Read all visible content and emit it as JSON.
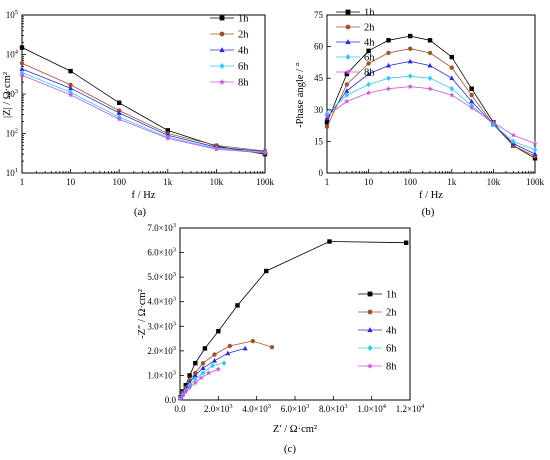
{
  "chart_data": [
    {
      "type": "scatter",
      "panel_label": "(a)",
      "xlabel": "f / Hz",
      "ylabel": "|Z| / Ω·cm²",
      "xscale": "log",
      "yscale": "log",
      "xlim": [
        1,
        100000
      ],
      "ylim": [
        10,
        100000
      ],
      "xticks": [
        "1",
        "10",
        "100",
        "1k",
        "10k",
        "100k"
      ],
      "yticks": [
        {
          "base": "10",
          "exp": "1"
        },
        {
          "base": "10",
          "exp": "2"
        },
        {
          "base": "10",
          "exp": "3"
        },
        {
          "base": "10",
          "exp": "4"
        },
        {
          "base": "10",
          "exp": "5"
        }
      ],
      "legend_position": "top-right",
      "series": [
        {
          "name": "1h",
          "color": "#000000",
          "marker": "square",
          "x": [
            1,
            10,
            100,
            1000,
            10000,
            100000
          ],
          "y": [
            15000,
            3800,
            600,
            120,
            48,
            30
          ]
        },
        {
          "name": "2h",
          "color": "#a0522d",
          "marker": "circle",
          "x": [
            1,
            10,
            100,
            1000,
            10000,
            100000
          ],
          "y": [
            6000,
            1700,
            380,
            100,
            50,
            36
          ]
        },
        {
          "name": "4h",
          "color": "#2e2ecc",
          "marker": "triangle",
          "x": [
            1,
            10,
            100,
            1000,
            10000,
            100000
          ],
          "y": [
            4300,
            1400,
            330,
            90,
            45,
            35
          ]
        },
        {
          "name": "6h",
          "color": "#35c8f0",
          "marker": "diamond",
          "x": [
            1,
            10,
            100,
            1000,
            10000,
            100000
          ],
          "y": [
            3500,
            1100,
            260,
            80,
            42,
            33
          ]
        },
        {
          "name": "8h",
          "color": "#cc55dd",
          "marker": "star",
          "x": [
            1,
            10,
            100,
            1000,
            10000,
            100000
          ],
          "y": [
            3000,
            950,
            230,
            75,
            40,
            32
          ]
        }
      ]
    },
    {
      "type": "scatter",
      "panel_label": "(b)",
      "xlabel": "f / Hz",
      "ylabel": "-Phase angle / °",
      "xscale": "log",
      "xlim": [
        1,
        100000
      ],
      "ylim": [
        0,
        75
      ],
      "xticks": [
        "1",
        "10",
        "100",
        "1k",
        "10k",
        "100k"
      ],
      "yticks": [
        "0",
        "15",
        "30",
        "45",
        "60",
        "75"
      ],
      "legend_position": "top-left",
      "series": [
        {
          "name": "1h",
          "color": "#000000",
          "marker": "square",
          "x": [
            1,
            3,
            10,
            30,
            100,
            300,
            1000,
            3000,
            10000,
            30000,
            100000
          ],
          "y": [
            24,
            47,
            58,
            63,
            65,
            63,
            55,
            40,
            24,
            13,
            7
          ]
        },
        {
          "name": "2h",
          "color": "#a0522d",
          "marker": "circle",
          "x": [
            1,
            3,
            10,
            30,
            100,
            300,
            1000,
            3000,
            10000,
            30000,
            100000
          ],
          "y": [
            22,
            42,
            52,
            57,
            59,
            57,
            50,
            37,
            23,
            13,
            8
          ]
        },
        {
          "name": "4h",
          "color": "#2e2ecc",
          "marker": "triangle",
          "x": [
            1,
            3,
            10,
            30,
            100,
            300,
            1000,
            3000,
            10000,
            30000,
            100000
          ],
          "y": [
            26,
            39,
            47,
            51,
            53,
            51,
            45,
            34,
            23,
            14,
            9
          ]
        },
        {
          "name": "6h",
          "color": "#35c8f0",
          "marker": "diamond",
          "x": [
            1,
            3,
            10,
            30,
            100,
            300,
            1000,
            3000,
            10000,
            30000,
            100000
          ],
          "y": [
            28,
            37,
            42,
            45,
            46,
            45,
            40,
            32,
            23,
            15,
            11
          ]
        },
        {
          "name": "8h",
          "color": "#cc55dd",
          "marker": "star",
          "x": [
            1,
            3,
            10,
            30,
            100,
            300,
            1000,
            3000,
            10000,
            30000,
            100000
          ],
          "y": [
            27,
            34,
            38,
            40,
            41,
            40,
            37,
            31,
            24,
            18,
            14
          ]
        }
      ]
    },
    {
      "type": "scatter",
      "panel_label": "(c)",
      "xlabel": "Z′ / Ω·cm²",
      "ylabel": "-Z″ / Ω·cm²",
      "xlim": [
        0,
        12000
      ],
      "ylim": [
        0,
        7000
      ],
      "xticks": [
        {
          "base": "0.0",
          "exp": ""
        },
        {
          "base": "2.0×10",
          "exp": "3"
        },
        {
          "base": "4.0×10",
          "exp": "3"
        },
        {
          "base": "6.0×10",
          "exp": "3"
        },
        {
          "base": "8.0×10",
          "exp": "3"
        },
        {
          "base": "1.0×10",
          "exp": "4"
        },
        {
          "base": "1.2×10",
          "exp": "4"
        }
      ],
      "yticks": [
        {
          "base": "0.0",
          "exp": ""
        },
        {
          "base": "1.0×10",
          "exp": "3"
        },
        {
          "base": "2.0×10",
          "exp": "3"
        },
        {
          "base": "3.0×10",
          "exp": "3"
        },
        {
          "base": "4.0×10",
          "exp": "3"
        },
        {
          "base": "5.0×10",
          "exp": "3"
        },
        {
          "base": "6.0×10",
          "exp": "3"
        },
        {
          "base": "7.0×10",
          "exp": "3"
        }
      ],
      "legend_position": "right",
      "series": [
        {
          "name": "1h",
          "color": "#000000",
          "marker": "square",
          "x": [
            30,
            150,
            300,
            500,
            800,
            1300,
            2000,
            3000,
            4500,
            7800,
            11800
          ],
          "y": [
            100,
            350,
            600,
            1000,
            1500,
            2100,
            2800,
            3850,
            5250,
            6450,
            6400
          ]
        },
        {
          "name": "2h",
          "color": "#a0522d",
          "marker": "circle",
          "x": [
            30,
            150,
            300,
            500,
            800,
            1200,
            1800,
            2600,
            3800,
            4800
          ],
          "y": [
            80,
            300,
            500,
            800,
            1100,
            1500,
            1850,
            2200,
            2400,
            2150
          ]
        },
        {
          "name": "4h",
          "color": "#2e2ecc",
          "marker": "triangle",
          "x": [
            30,
            150,
            300,
            500,
            800,
            1200,
            1800,
            2500,
            3400
          ],
          "y": [
            70,
            250,
            450,
            700,
            1000,
            1300,
            1600,
            1900,
            2100
          ]
        },
        {
          "name": "6h",
          "color": "#35c8f0",
          "marker": "diamond",
          "x": [
            30,
            150,
            300,
            500,
            800,
            1200,
            1700,
            2300
          ],
          "y": [
            60,
            220,
            380,
            600,
            850,
            1100,
            1400,
            1500
          ]
        },
        {
          "name": "8h",
          "color": "#cc55dd",
          "marker": "star",
          "x": [
            30,
            150,
            300,
            500,
            800,
            1100,
            1500,
            2000
          ],
          "y": [
            50,
            180,
            330,
            500,
            700,
            900,
            1100,
            1250
          ]
        }
      ]
    }
  ]
}
